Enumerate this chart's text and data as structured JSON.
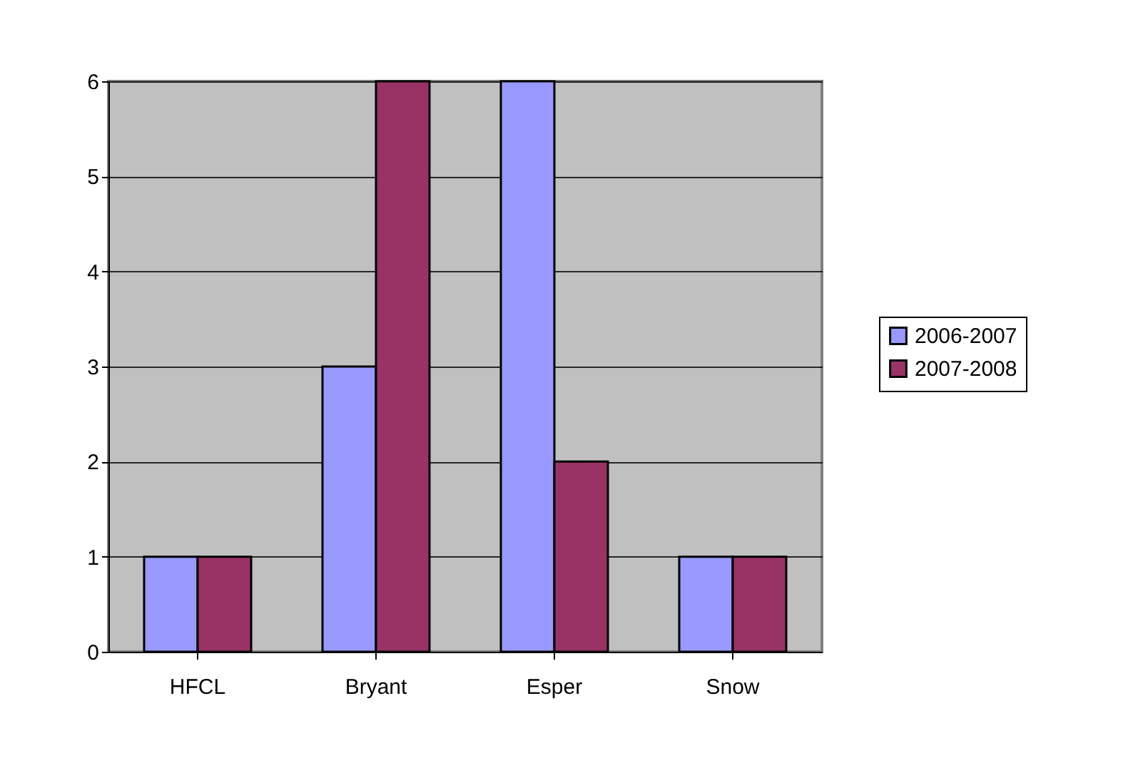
{
  "chart_data": {
    "type": "bar",
    "categories": [
      "HFCL",
      "Bryant",
      "Esper",
      "Snow"
    ],
    "series": [
      {
        "name": "2006-2007",
        "color": "#9999ff",
        "values": [
          1,
          3,
          6,
          1
        ]
      },
      {
        "name": "2007-2008",
        "color": "#993366",
        "values": [
          1,
          6,
          2,
          1
        ]
      }
    ],
    "ylim": [
      0,
      6
    ],
    "yticks": [
      0,
      1,
      2,
      3,
      4,
      5,
      6
    ],
    "grid": "y",
    "legend": "right"
  }
}
